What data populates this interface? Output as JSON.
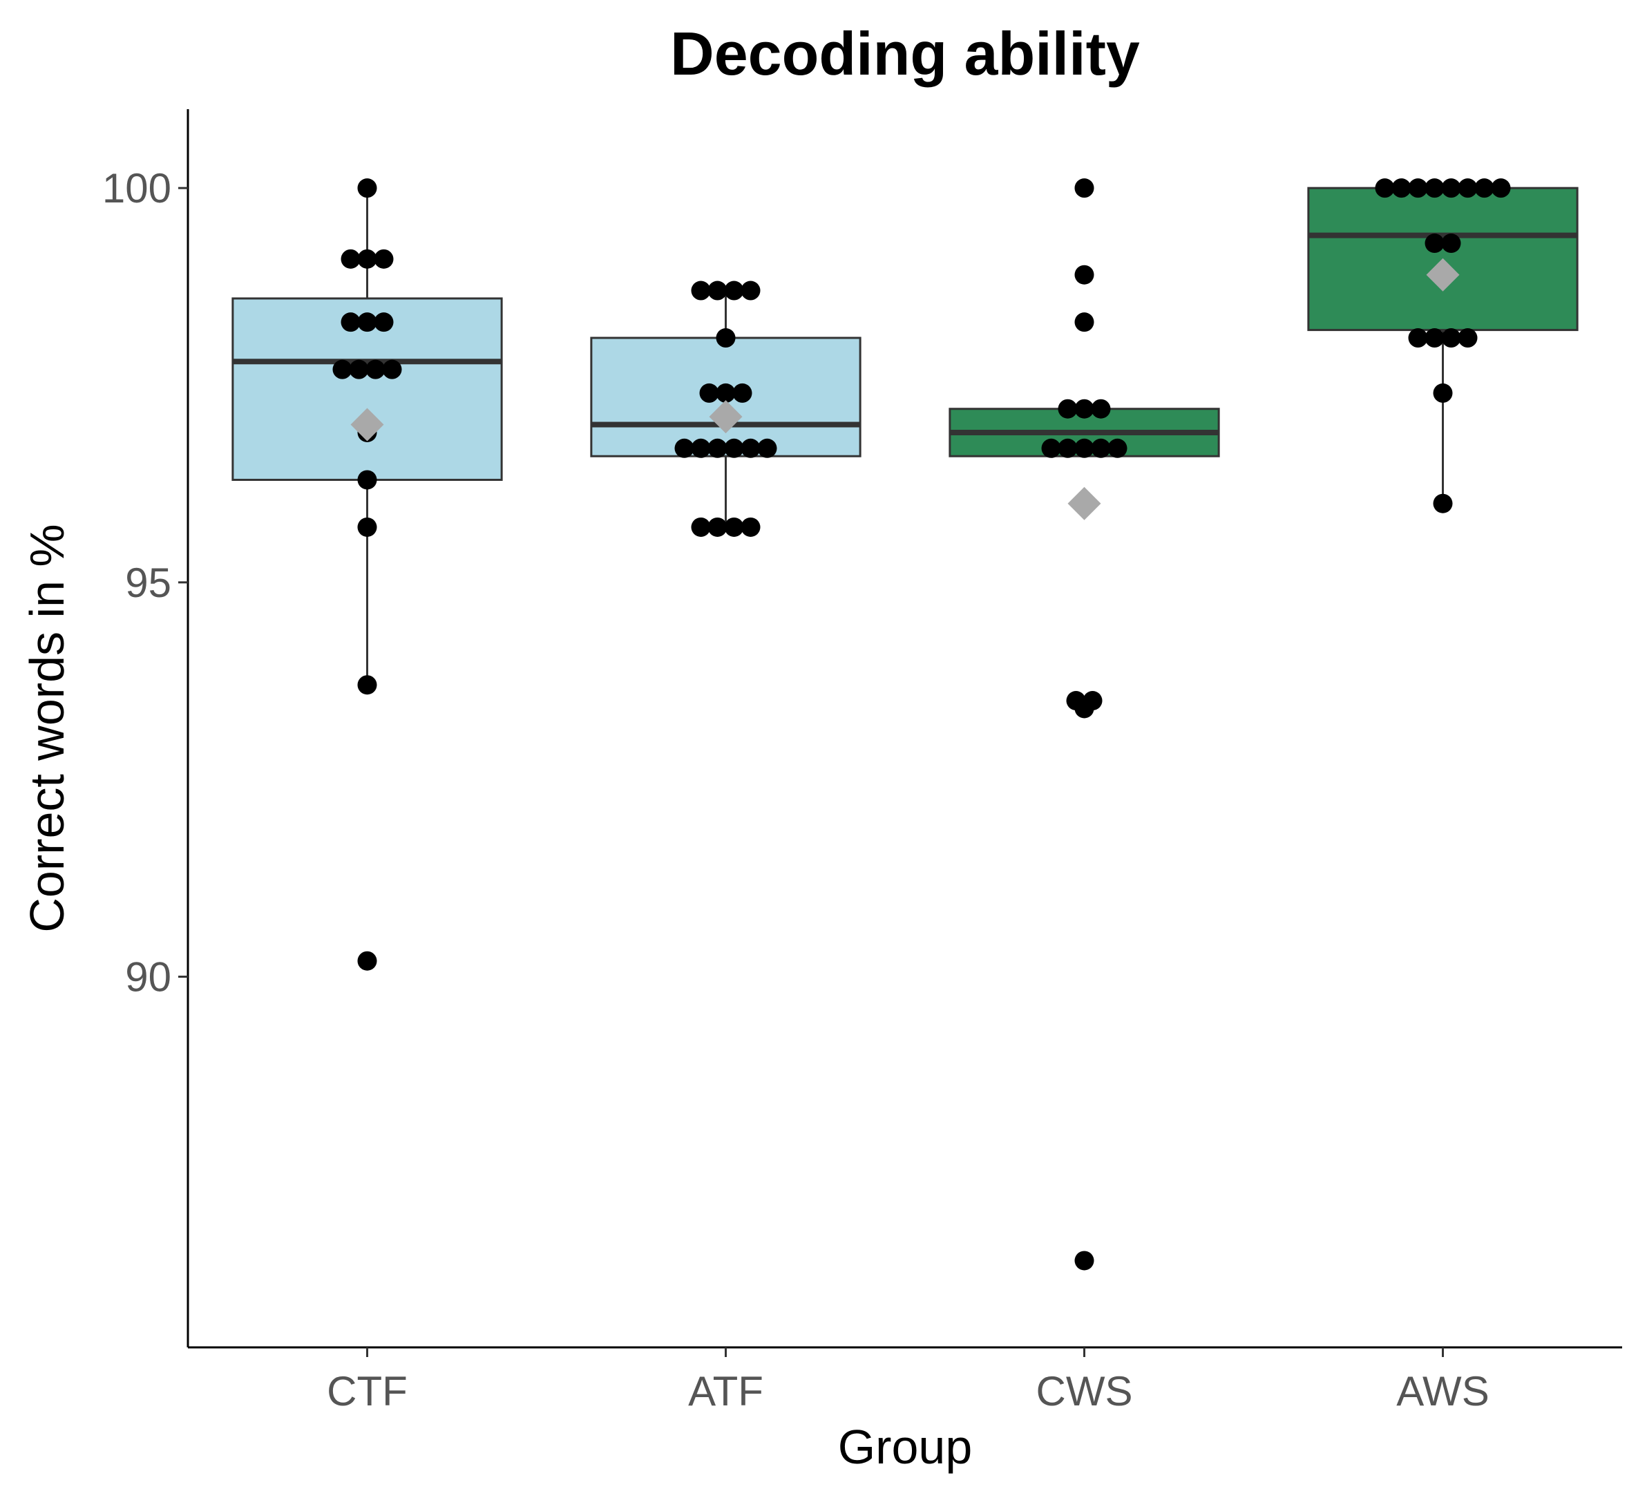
{
  "chart_data": {
    "type": "box",
    "title": "Decoding ability",
    "xlabel": "Group",
    "ylabel": "Correct words in %",
    "categories": [
      "CTF",
      "ATF",
      "CWS",
      "AWS"
    ],
    "ylim": [
      85.3,
      101.0
    ],
    "yticks": [
      90,
      95,
      100
    ],
    "ytick_labels": [
      "90",
      "95",
      "100"
    ],
    "grid": false,
    "legend": "none",
    "box_colors": [
      "#add8e6",
      "#add8e6",
      "#2e8b57",
      "#2e8b57"
    ],
    "mean_marker_color": "#a9a9a9",
    "point_color": "#000000",
    "boxes": [
      {
        "q1": 96.3,
        "median": 97.8,
        "q3": 98.6,
        "whisker_low": 93.7,
        "whisker_high": 100.0,
        "mean": 97.0
      },
      {
        "q1": 96.6,
        "median": 97.0,
        "q3": 98.1,
        "whisker_low": 95.7,
        "whisker_high": 98.7,
        "mean": 97.1
      },
      {
        "q1": 96.6,
        "median": 96.9,
        "q3": 97.2,
        "whisker_low": 96.6,
        "whisker_high": 97.2,
        "mean": 96.0
      },
      {
        "q1": 98.2,
        "median": 99.4,
        "q3": 100.0,
        "whisker_low": 96.0,
        "whisker_high": 100.0,
        "mean": 98.9
      }
    ],
    "points": [
      [
        100.0,
        99.1,
        99.1,
        99.1,
        98.3,
        98.3,
        98.3,
        97.7,
        97.7,
        97.7,
        97.7,
        96.9,
        96.3,
        95.7,
        93.7,
        90.2
      ],
      [
        98.7,
        98.7,
        98.7,
        98.7,
        98.1,
        97.4,
        97.4,
        97.4,
        96.7,
        96.7,
        96.7,
        96.7,
        96.7,
        96.7,
        95.7,
        95.7,
        95.7,
        95.7
      ],
      [
        100.0,
        98.9,
        98.3,
        97.2,
        97.2,
        97.2,
        96.7,
        96.7,
        96.7,
        96.7,
        96.7,
        93.5,
        93.5,
        93.4,
        86.4
      ],
      [
        100.0,
        100.0,
        100.0,
        100.0,
        100.0,
        100.0,
        100.0,
        100.0,
        99.3,
        99.3,
        98.1,
        98.1,
        98.1,
        98.1,
        97.4,
        96.0
      ]
    ]
  }
}
